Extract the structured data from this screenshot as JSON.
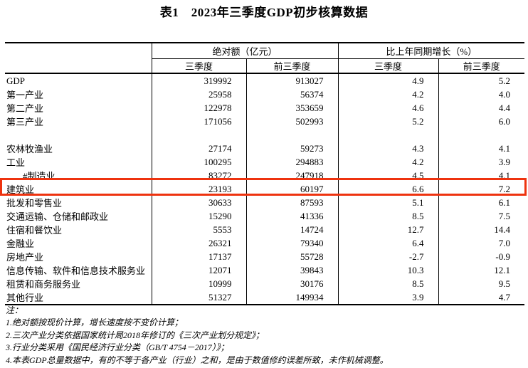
{
  "title": "表1　2023年三季度GDP初步核算数据",
  "table": {
    "group_headers": [
      "绝对额（亿元）",
      "比上年同期增长（%）"
    ],
    "sub_headers": [
      "三季度",
      "前三季度",
      "三季度",
      "前三季度"
    ],
    "rows": [
      {
        "label": "GDP",
        "q3_abs": "319992",
        "ytd_abs": "913027",
        "q3_growth": "4.9",
        "ytd_growth": "5.2"
      },
      {
        "label": "第一产业",
        "q3_abs": "25958",
        "ytd_abs": "56374",
        "q3_growth": "4.2",
        "ytd_growth": "4.0"
      },
      {
        "label": "第二产业",
        "q3_abs": "122978",
        "ytd_abs": "353659",
        "q3_growth": "4.6",
        "ytd_growth": "4.4"
      },
      {
        "label": "第三产业",
        "q3_abs": "171056",
        "ytd_abs": "502993",
        "q3_growth": "5.2",
        "ytd_growth": "6.0"
      },
      {
        "label": "",
        "q3_abs": "",
        "ytd_abs": "",
        "q3_growth": "",
        "ytd_growth": "",
        "empty": true
      },
      {
        "label": "农林牧渔业",
        "q3_abs": "27174",
        "ytd_abs": "59273",
        "q3_growth": "4.3",
        "ytd_growth": "4.1"
      },
      {
        "label": "工业",
        "q3_abs": "100295",
        "ytd_abs": "294883",
        "q3_growth": "4.2",
        "ytd_growth": "3.9"
      },
      {
        "label": "#制造业",
        "q3_abs": "83272",
        "ytd_abs": "247918",
        "q3_growth": "4.5",
        "ytd_growth": "4.1",
        "indent": true
      },
      {
        "label": "建筑业",
        "q3_abs": "23193",
        "ytd_abs": "60197",
        "q3_growth": "6.6",
        "ytd_growth": "7.2",
        "highlight": true
      },
      {
        "label": "批发和零售业",
        "q3_abs": "30633",
        "ytd_abs": "87593",
        "q3_growth": "5.1",
        "ytd_growth": "6.1"
      },
      {
        "label": "交通运输、仓储和邮政业",
        "q3_abs": "15290",
        "ytd_abs": "41336",
        "q3_growth": "8.5",
        "ytd_growth": "7.5"
      },
      {
        "label": "住宿和餐饮业",
        "q3_abs": "5553",
        "ytd_abs": "14724",
        "q3_growth": "12.7",
        "ytd_growth": "14.4"
      },
      {
        "label": "金融业",
        "q3_abs": "26321",
        "ytd_abs": "79340",
        "q3_growth": "6.4",
        "ytd_growth": "7.0"
      },
      {
        "label": "房地产业",
        "q3_abs": "17137",
        "ytd_abs": "55728",
        "q3_growth": "-2.7",
        "ytd_growth": "-0.9"
      },
      {
        "label": "信息传输、软件和信息技术服务业",
        "q3_abs": "12071",
        "ytd_abs": "39843",
        "q3_growth": "10.3",
        "ytd_growth": "12.1"
      },
      {
        "label": "租赁和商务服务业",
        "q3_abs": "10999",
        "ytd_abs": "30176",
        "q3_growth": "8.5",
        "ytd_growth": "9.5"
      },
      {
        "label": "其他行业",
        "q3_abs": "51327",
        "ytd_abs": "149934",
        "q3_growth": "3.9",
        "ytd_growth": "4.7"
      }
    ]
  },
  "highlight": {
    "row_label": "建筑业",
    "color": "#ee330f"
  },
  "notes": {
    "heading": "注：",
    "items": [
      "1.绝对额按现价计算，增长速度按不变价计算；",
      "2.三次产业分类依据国家统计局2018年修订的《三次产业划分规定》；",
      "3.行业分类采用《国民经济行业分类（GB/T 4754－2017）》；",
      "4.本表GDP总量数据中，有的不等于各产业（行业）之和，是由于数值修约误差所致，未作机械调整。"
    ]
  }
}
